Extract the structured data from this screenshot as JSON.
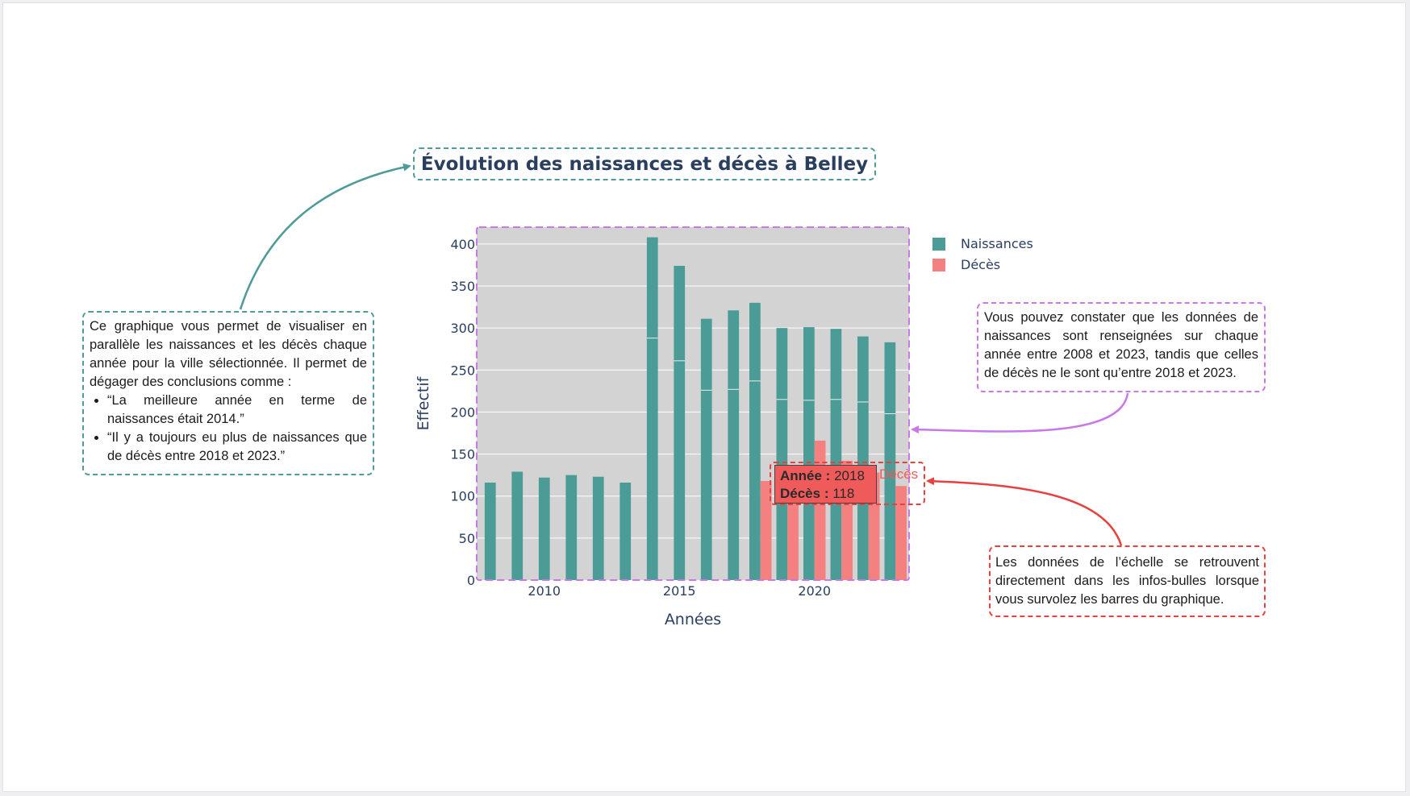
{
  "chart_data": {
    "type": "bar",
    "title": "Évolution des naissances et décès à Belley",
    "xlabel": "Années",
    "ylabel": "Effectif",
    "xlim": [
      2007.5,
      2023.5
    ],
    "ylim": [
      0,
      420
    ],
    "x_ticks": [
      2010,
      2015,
      2020
    ],
    "y_ticks": [
      0,
      50,
      100,
      150,
      200,
      250,
      300,
      350,
      400
    ],
    "grid": true,
    "legend_position": "top-right",
    "years": [
      2008,
      2009,
      2010,
      2011,
      2012,
      2013,
      2014,
      2015,
      2016,
      2017,
      2018,
      2019,
      2020,
      2021,
      2022,
      2023
    ],
    "series": [
      {
        "name": "Naissances",
        "color": "#4b9b97",
        "values": [
          116,
          129,
          122,
          125,
          123,
          116,
          408,
          374,
          311,
          321,
          330,
          300,
          301,
          299,
          290,
          283
        ],
        "segment_lines": [
          null,
          null,
          null,
          null,
          null,
          null,
          288,
          261,
          226,
          227,
          237,
          215,
          214,
          215,
          212,
          198
        ]
      },
      {
        "name": "Décès",
        "color": "#f4817f",
        "values": [
          null,
          null,
          null,
          null,
          null,
          null,
          null,
          null,
          null,
          null,
          118,
          130,
          166,
          142,
          128,
          112
        ]
      }
    ],
    "tooltip": {
      "year_label": "Année :",
      "year_value": "2018",
      "value_label": "Décès :",
      "value_value": "118",
      "series_name": "Décès"
    }
  },
  "annotations": {
    "left_intro": "Ce graphique vous permet de visualiser en parallèle les naissances et les décès chaque année pour la ville sélectionnée. Il permet de dégager des conclusions comme :",
    "left_bullet_1": "“La meilleure année en terme de naissances était 2014.”",
    "left_bullet_2": "“Il y a toujours eu plus de naissances que de décès entre 2018 et 2023.”",
    "right_top": "Vous pouvez constater que les données de naissances sont renseignées sur chaque année entre 2008 et 2023, tandis que celles de décès ne le sont qu’entre 2018 et 2023.",
    "right_bottom": "Les données de l’échelle se retrouvent directement dans les infos-bulles lorsque vous survolez les barres du graphique."
  },
  "colors": {
    "teal_annotation": "#4e9b98",
    "purple_annotation": "#c978e6",
    "red_annotation": "#e8403f",
    "plot_background": "#d3d3d3",
    "axis_text": "#2a3f5f"
  }
}
